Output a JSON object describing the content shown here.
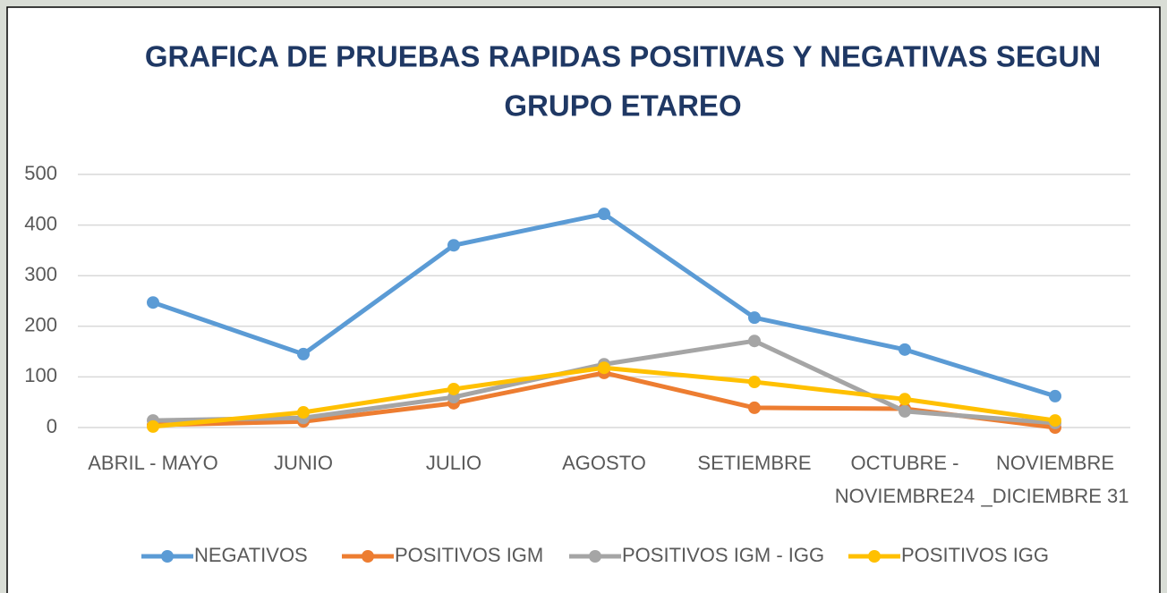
{
  "chart_data": {
    "type": "line",
    "title": [
      "GRAFICA  DE PRUEBAS RAPIDAS POSITIVAS Y NEGATIVAS SEGUN",
      "GRUPO ETAREO"
    ],
    "categories": [
      "ABRIL - MAYO",
      "JUNIO",
      "JULIO",
      "AGOSTO",
      "SETIEMBRE",
      "OCTUBRE - NOVIEMBRE24",
      "NOVIEMBRE _DICIEMBRE 31"
    ],
    "series": [
      {
        "name": "NEGATIVOS",
        "color": "#5b9bd5",
        "values": [
          247,
          145,
          360,
          422,
          217,
          154,
          62
        ]
      },
      {
        "name": "POSITIVOS IGM",
        "color": "#ed7d31",
        "values": [
          5,
          12,
          48,
          108,
          39,
          37,
          0
        ]
      },
      {
        "name": "POSITIVOS IGM - IGG",
        "color": "#a5a5a5",
        "values": [
          14,
          19,
          60,
          125,
          171,
          32,
          9
        ]
      },
      {
        "name": "POSITIVOS IGG",
        "color": "#ffc000",
        "values": [
          2,
          30,
          76,
          118,
          90,
          56,
          14
        ]
      }
    ],
    "ylim": [
      0,
      500
    ],
    "yticks": [
      0,
      100,
      200,
      300,
      400,
      500
    ],
    "grid": true,
    "legend": "bottom"
  }
}
